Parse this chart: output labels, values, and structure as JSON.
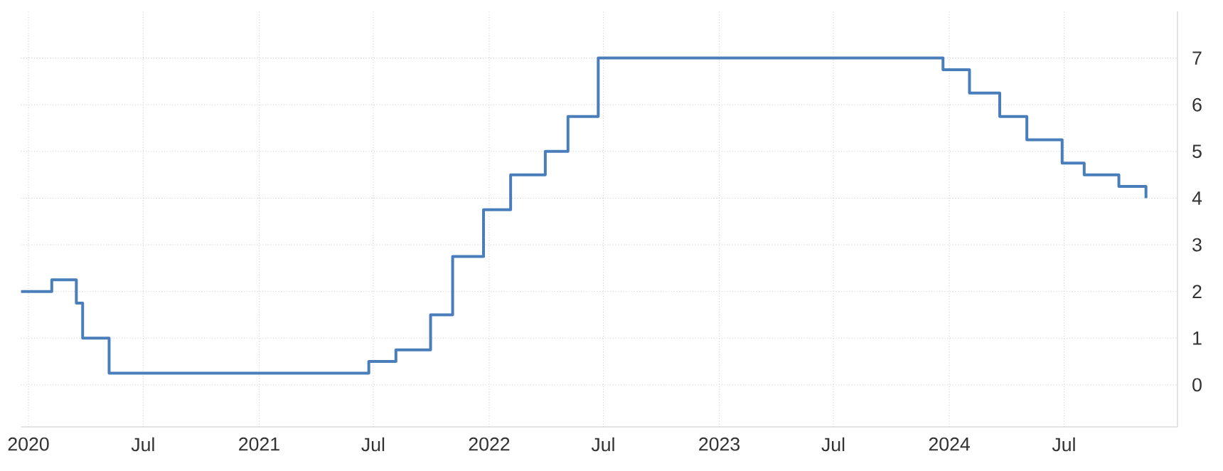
{
  "chart_data": {
    "type": "step",
    "color": "#4a7ebb",
    "x": [
      "2019-12-20",
      "2020-02-07",
      "2020-03-17",
      "2020-03-27",
      "2020-05-08",
      "2021-06-24",
      "2021-08-06",
      "2021-09-30",
      "2021-11-04",
      "2021-12-23",
      "2022-02-04",
      "2022-03-31",
      "2022-05-06",
      "2022-06-23",
      "2023-12-22",
      "2024-02-02",
      "2024-03-21",
      "2024-05-03",
      "2024-06-28",
      "2024-08-02",
      "2024-09-26",
      "2024-11-08"
    ],
    "values": [
      2.0,
      2.25,
      1.75,
      1.0,
      0.25,
      0.5,
      0.75,
      1.5,
      2.75,
      3.75,
      4.5,
      5.0,
      5.75,
      7.0,
      6.75,
      6.25,
      5.75,
      5.25,
      4.75,
      4.5,
      4.25,
      4.0
    ],
    "xlim": [
      "2019-12-20",
      "2024-12-28"
    ],
    "xticks": [
      {
        "value": "2020-01-01",
        "label": "2020"
      },
      {
        "value": "2020-07-01",
        "label": "Jul"
      },
      {
        "value": "2021-01-01",
        "label": "2021"
      },
      {
        "value": "2021-07-01",
        "label": "Jul"
      },
      {
        "value": "2022-01-01",
        "label": "2022"
      },
      {
        "value": "2022-07-01",
        "label": "Jul"
      },
      {
        "value": "2023-01-01",
        "label": "2023"
      },
      {
        "value": "2023-07-01",
        "label": "Jul"
      },
      {
        "value": "2024-01-01",
        "label": "2024"
      },
      {
        "value": "2024-07-01",
        "label": "Jul"
      }
    ],
    "ylim": [
      -0.9,
      8
    ],
    "yticks": [
      0,
      1,
      2,
      3,
      4,
      5,
      6,
      7
    ],
    "grid": true,
    "marker": "none",
    "line_style": "solid"
  }
}
